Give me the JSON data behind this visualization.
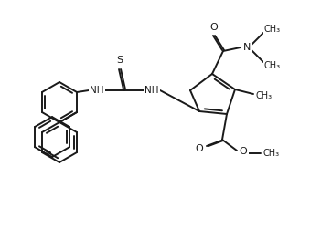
{
  "background_color": "#ffffff",
  "line_color": "#1a1a1a",
  "lw": 1.4,
  "figsize": [
    3.39,
    2.74
  ],
  "dpi": 100,
  "xlim": [
    0,
    339
  ],
  "ylim": [
    0,
    274
  ]
}
